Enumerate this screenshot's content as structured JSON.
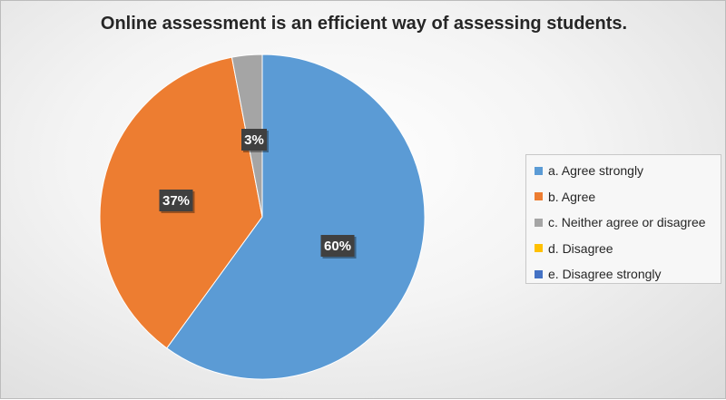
{
  "chart_data": {
    "type": "pie",
    "title": "Online assessment is an efficient way of assessing students.",
    "categories": [
      "a. Agree strongly",
      "b. Agree",
      "c. Neither agree or disagree",
      "d. Disagree",
      "e. Disagree strongly"
    ],
    "values": [
      60,
      37,
      3,
      0,
      0
    ],
    "data_labels": [
      "60%",
      "37%",
      "3%",
      "",
      ""
    ],
    "colors": [
      "#5b9bd5",
      "#ed7d31",
      "#a5a5a5",
      "#ffc000",
      "#4472c4"
    ],
    "legend_position": "right"
  }
}
